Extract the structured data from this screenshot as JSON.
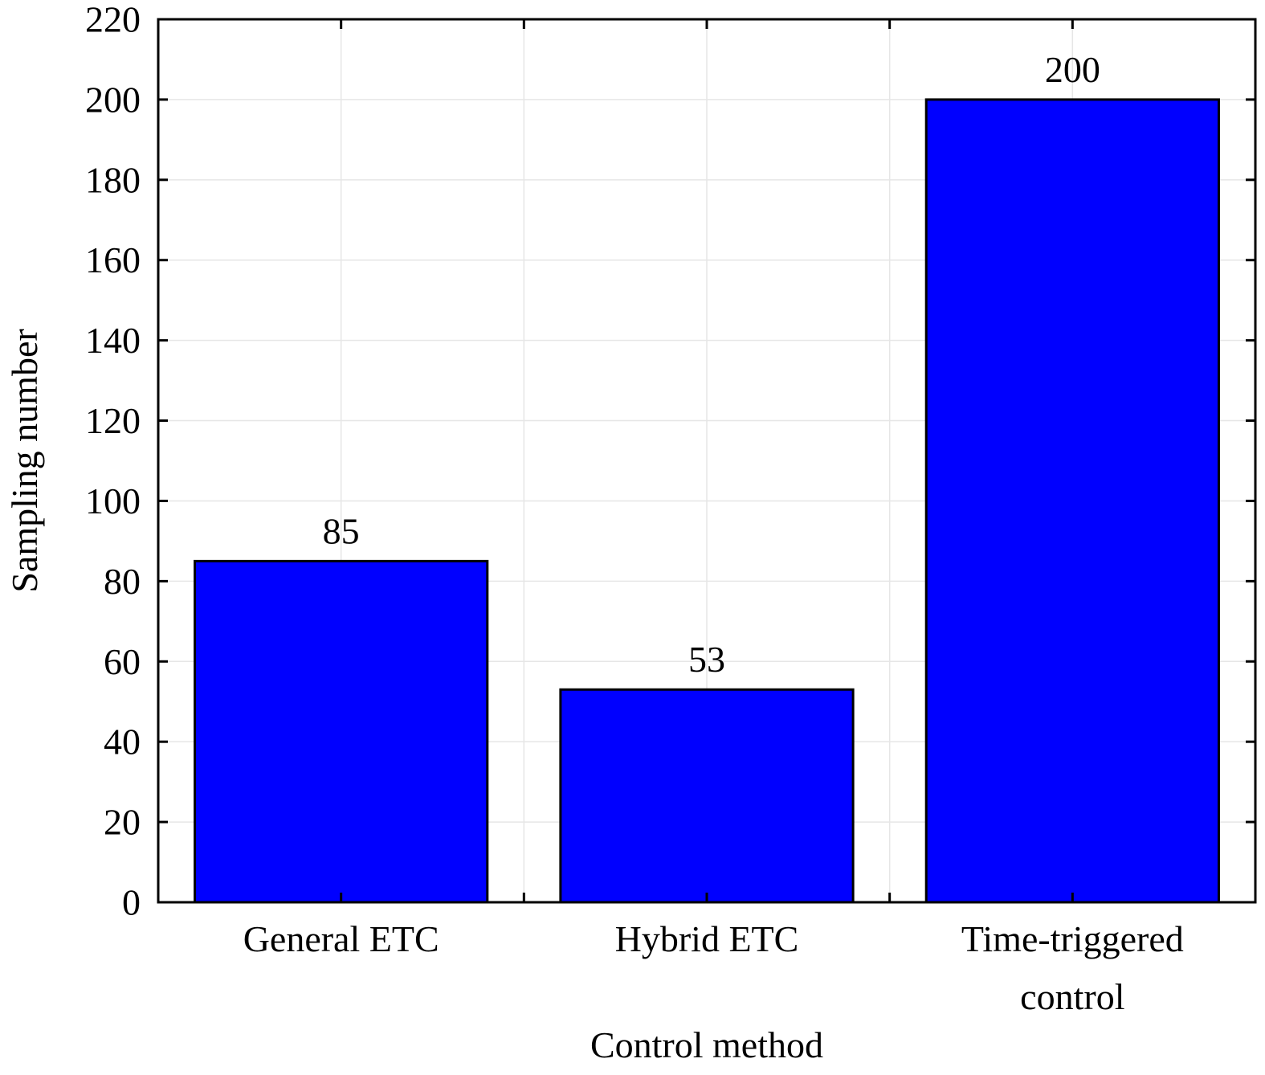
{
  "chart_data": {
    "type": "bar",
    "title": "",
    "xlabel": "Control method",
    "ylabel": "Sampling number",
    "categories": [
      [
        "General ETC"
      ],
      [
        "Hybrid ETC"
      ],
      [
        "Time-triggered",
        "control"
      ]
    ],
    "values": [
      85,
      53,
      200
    ],
    "data_labels": [
      "85",
      "53",
      "200"
    ],
    "ylim": [
      0,
      220
    ],
    "yticks": [
      0,
      20,
      40,
      60,
      80,
      100,
      120,
      140,
      160,
      180,
      200,
      220
    ],
    "grid": true,
    "bar_color": "#0000ff",
    "bar_edge_color": "#000000",
    "grid_color": "#e6e6e6"
  }
}
